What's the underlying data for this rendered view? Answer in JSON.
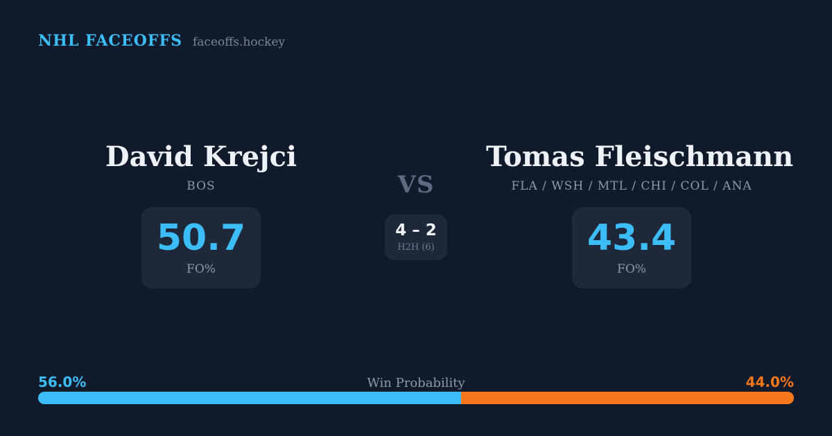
{
  "header": {
    "brand": "NHL FACEOFFS",
    "site": "faceoffs.hockey"
  },
  "matchup": {
    "player1": {
      "name": "David Krejci",
      "teams": "BOS",
      "stat_value": "50.7",
      "stat_label": "FO%"
    },
    "player2": {
      "name": "Tomas Fleischmann",
      "teams": "FLA / WSH / MTL / CHI / COL / ANA",
      "stat_value": "43.4",
      "stat_label": "FO%"
    },
    "vs_label": "VS",
    "h2h": {
      "score": "4 – 2",
      "label": "H2H (6)"
    }
  },
  "win_probability": {
    "title": "Win Probability",
    "left_pct_label": "56.0%",
    "right_pct_label": "44.0%",
    "left_value": 56.0,
    "right_value": 44.0
  },
  "colors": {
    "background": "#111a2b",
    "card": "#1e2839",
    "accent_blue": "#3cbdf7",
    "accent_orange": "#f7771b",
    "text_primary": "#eef2f7",
    "text_muted": "#8e99ab"
  }
}
